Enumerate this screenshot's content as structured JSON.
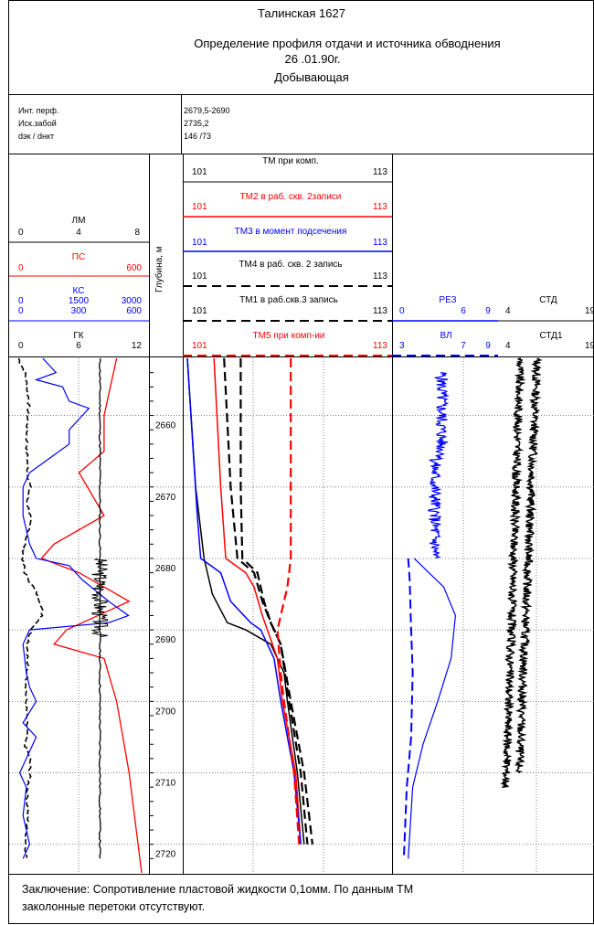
{
  "header": {
    "line1": "Талинская   1627",
    "line2": "Определение профиля  отдачи и источника обводнения",
    "line3": "26 .01.90г.",
    "line4": "Добывающая"
  },
  "info": [
    {
      "label": "Инт. перф.",
      "value": "2679,5-2690"
    },
    {
      "label": "Иск.забой",
      "value": "2735,2"
    },
    {
      "label": "dэк / dнкт",
      "value": "146 /73"
    }
  ],
  "colors": {
    "black": "#000000",
    "red": "#ff0000",
    "blue": "#0000ff",
    "grid": "#808080"
  },
  "depth_axis_label": "Глубина, м",
  "conclusion": {
    "line1": "Заключение:  Сопротивление пластовой жидкости 0,1омм. По данным ТМ",
    "line2": " заколонные перетоки отсутствуют."
  },
  "chart_data": {
    "type": "line",
    "y_axis": {
      "label": "Глубина, м",
      "range": [
        2652,
        2724
      ],
      "ticks": [
        2660,
        2670,
        2680,
        2690,
        2700,
        2710,
        2720
      ],
      "inverted": true
    },
    "tracks": [
      {
        "id": "lm",
        "name": "ЛМ",
        "color": "#000000",
        "scale_min": "0",
        "scale_mid": "4",
        "scale_max": "8"
      },
      {
        "id": "ps",
        "name": "ПС",
        "color": "#ff0000",
        "scale_min": "0",
        "scale_max": "600"
      },
      {
        "id": "ks",
        "name": "КС",
        "color": "#0000ff",
        "scale_min": "0",
        "scale_mid": "1500",
        "scale_max": "3000",
        "scale2_min": "0",
        "scale2_mid": "300",
        "scale2_max": "600"
      },
      {
        "id": "gk",
        "name": "ГК",
        "color": "#000000",
        "scale_min": "0",
        "scale_mid": "6",
        "scale_max": "12"
      },
      {
        "id": "tm",
        "name": "ТМ при комп.",
        "color": "#000000",
        "style": "solid",
        "scale_min": "101",
        "scale_max": "113"
      },
      {
        "id": "tm2",
        "name": "ТМ2 в раб. скв. 2записи",
        "color": "#ff0000",
        "style": "solid",
        "scale_min": "101",
        "scale_max": "113"
      },
      {
        "id": "tm3",
        "name": "ТМ3 в момент подсечения",
        "color": "#0000ff",
        "style": "solid",
        "scale_min": "101",
        "scale_max": "113"
      },
      {
        "id": "tm4",
        "name": "ТМ4 в раб. скв. 2 запись",
        "color": "#000000",
        "style": "dashed",
        "scale_min": "101",
        "scale_max": "113"
      },
      {
        "id": "tm1",
        "name": "ТМ1 в раб.скв.3 запись",
        "color": "#000000",
        "style": "dashed",
        "scale_min": "101",
        "scale_max": "113"
      },
      {
        "id": "tm5",
        "name": "ТМ5 при комп-ии",
        "color": "#ff0000",
        "style": "dashed",
        "scale_min": "101",
        "scale_max": "113"
      },
      {
        "id": "rez",
        "name": "РЕЗ",
        "color": "#0000ff",
        "style": "solid",
        "scale_min": "0",
        "scale_mid": "6",
        "scale_max": "9"
      },
      {
        "id": "vl",
        "name": "ВЛ",
        "color": "#0000ff",
        "style": "dashed",
        "scale_min": "3",
        "scale_mid": "7",
        "scale_max": "9"
      },
      {
        "id": "std",
        "name": "СТД",
        "color": "#000000",
        "scale_min": "4",
        "scale_max": "19"
      },
      {
        "id": "std1",
        "name": "СТД1",
        "color": "#000000",
        "scale_min": "4",
        "scale_max": "19"
      }
    ],
    "curves": {
      "ps": [
        [
          2652,
          0.8
        ],
        [
          2660,
          0.7
        ],
        [
          2665,
          0.7
        ],
        [
          2668,
          0.5
        ],
        [
          2674,
          0.7
        ],
        [
          2678,
          0.3
        ],
        [
          2680,
          0.2
        ],
        [
          2682,
          0.5
        ],
        [
          2686,
          0.9
        ],
        [
          2690,
          0.4
        ],
        [
          2692,
          0.3
        ],
        [
          2694,
          0.7
        ],
        [
          2700,
          0.8
        ],
        [
          2710,
          0.9
        ],
        [
          2724,
          1.0
        ]
      ],
      "lm": [
        [
          2652,
          0.2
        ],
        [
          2654,
          0.8
        ],
        [
          2656,
          1.0
        ],
        [
          2658,
          1.2
        ],
        [
          2660,
          1.1
        ],
        [
          2663,
          1.0
        ],
        [
          2665,
          1.0
        ],
        [
          2668,
          1.1
        ],
        [
          2670,
          1.3
        ],
        [
          2672,
          1.0
        ],
        [
          2674,
          1.3
        ],
        [
          2676,
          1.2
        ],
        [
          2678,
          0.8
        ],
        [
          2680,
          0.6
        ],
        [
          2682,
          0.8
        ],
        [
          2684,
          1.6
        ],
        [
          2686,
          2.3
        ],
        [
          2688,
          2.5
        ],
        [
          2690,
          1.4
        ],
        [
          2692,
          1.1
        ],
        [
          2696,
          1.0
        ],
        [
          2700,
          0.9
        ],
        [
          2704,
          1.0
        ],
        [
          2706,
          0.8
        ],
        [
          2708,
          1.3
        ],
        [
          2710,
          1.3
        ],
        [
          2713,
          1.0
        ],
        [
          2716,
          1.1
        ],
        [
          2720,
          0.9
        ],
        [
          2722,
          1.0
        ]
      ],
      "ks": [
        [
          2652,
          0.4
        ],
        [
          2654,
          0.6
        ],
        [
          2655,
          0.3
        ],
        [
          2656,
          0.7
        ],
        [
          2658,
          0.8
        ],
        [
          2659,
          1.1
        ],
        [
          2660,
          1.0
        ],
        [
          2662,
          0.8
        ],
        [
          2664,
          0.8
        ],
        [
          2666,
          0.5
        ],
        [
          2668,
          0.2
        ],
        [
          2670,
          0.1
        ],
        [
          2674,
          0.1
        ],
        [
          2678,
          0.2
        ],
        [
          2680,
          0.3
        ],
        [
          2681,
          0.8
        ],
        [
          2683,
          1.0
        ],
        [
          2686,
          1.4
        ],
        [
          2688,
          1.7
        ],
        [
          2689,
          1.4
        ],
        [
          2690,
          0.2
        ],
        [
          2692,
          0.1
        ],
        [
          2696,
          0.15
        ],
        [
          2698,
          0.2
        ],
        [
          2700,
          0.3
        ],
        [
          2703,
          0.1
        ],
        [
          2705,
          0.3
        ],
        [
          2707,
          0.2
        ],
        [
          2710,
          0.05
        ],
        [
          2712,
          0.15
        ],
        [
          2716,
          0.1
        ],
        [
          2720,
          0.2
        ],
        [
          2722,
          0.1
        ]
      ],
      "gk": [
        [
          2652,
          8.0
        ],
        [
          2660,
          8.0
        ],
        [
          2670,
          8.0
        ],
        [
          2680,
          8.0
        ],
        [
          2690,
          8.0
        ],
        [
          2700,
          8.0
        ],
        [
          2710,
          8.0
        ],
        [
          2722,
          8.0
        ]
      ],
      "tm": [
        [
          2652,
          101.0
        ],
        [
          2670,
          101.5
        ],
        [
          2680,
          102.0
        ],
        [
          2685,
          102.5
        ],
        [
          2689,
          103.4
        ],
        [
          2690,
          104.5
        ],
        [
          2692,
          106.0
        ],
        [
          2696,
          106.8
        ],
        [
          2700,
          107.0
        ],
        [
          2710,
          107.6
        ],
        [
          2720,
          108.0
        ]
      ],
      "tm2": [
        [
          2652,
          102.6
        ],
        [
          2670,
          103.0
        ],
        [
          2680,
          103.3
        ],
        [
          2682,
          104.5
        ],
        [
          2684,
          105.0
        ],
        [
          2688,
          105.5
        ],
        [
          2690,
          105.8
        ],
        [
          2694,
          106.4
        ],
        [
          2700,
          106.7
        ],
        [
          2710,
          107.5
        ],
        [
          2720,
          107.8
        ]
      ],
      "tm3": [
        [
          2652,
          101.0
        ],
        [
          2674,
          101.6
        ],
        [
          2680,
          101.8
        ],
        [
          2682,
          103.0
        ],
        [
          2686,
          103.6
        ],
        [
          2689,
          104.8
        ],
        [
          2690,
          105.4
        ],
        [
          2694,
          106.2
        ],
        [
          2700,
          106.6
        ],
        [
          2710,
          107.4
        ],
        [
          2720,
          107.8
        ]
      ],
      "tm4": [
        [
          2652,
          103.2
        ],
        [
          2670,
          103.6
        ],
        [
          2680,
          104.0
        ],
        [
          2682,
          105.0
        ],
        [
          2686,
          105.5
        ],
        [
          2689,
          106.0
        ],
        [
          2692,
          106.6
        ],
        [
          2700,
          107.1
        ],
        [
          2710,
          107.8
        ],
        [
          2720,
          108.2
        ]
      ],
      "tm1": [
        [
          2652,
          104.2
        ],
        [
          2670,
          104.2
        ],
        [
          2680,
          104.3
        ],
        [
          2682,
          105.2
        ],
        [
          2686,
          105.6
        ],
        [
          2689,
          106.0
        ],
        [
          2692,
          106.6
        ],
        [
          2700,
          107.2
        ],
        [
          2710,
          108.0
        ],
        [
          2720,
          108.5
        ]
      ],
      "tm5": [
        [
          2652,
          107.2
        ],
        [
          2680,
          107.2
        ],
        [
          2684,
          107.0
        ],
        [
          2688,
          106.6
        ],
        [
          2690,
          106.4
        ],
        [
          2696,
          106.6
        ],
        [
          2700,
          106.8
        ],
        [
          2710,
          107.4
        ],
        [
          2720,
          107.7
        ]
      ]
    },
    "rez_note": "РЕЗ/ВЛ resistivity and СТД/СТД1 curves are drawn as noisy traces between the listed depths",
    "rez_span": [
      2654,
      2680
    ],
    "vl_span": [
      2680,
      2722
    ],
    "std_span": [
      2652,
      2712
    ],
    "std1_span": [
      2652,
      2710
    ]
  }
}
